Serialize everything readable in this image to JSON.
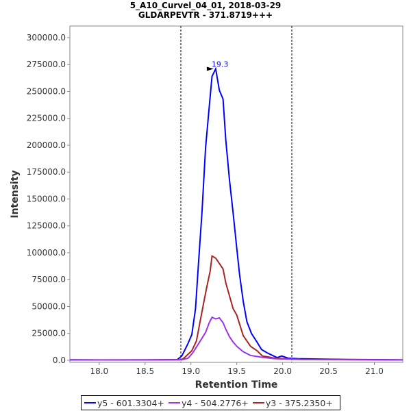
{
  "chart_data": {
    "type": "line",
    "title": "5_A10_Curvel_04_01, 2018-03-29",
    "subtitle": "GLDARPEVTR - 371.8719+++",
    "xlabel": "Retention Time",
    "ylabel": "Intensity",
    "xlim": [
      17.68,
      21.31
    ],
    "ylim": [
      0,
      310800
    ],
    "xticks": [
      "18.0",
      "18.5",
      "19.0",
      "19.5",
      "20.0",
      "20.5",
      "21.0"
    ],
    "xtick_values": [
      18.0,
      18.5,
      19.0,
      19.5,
      20.0,
      20.5,
      21.0
    ],
    "yticks": [
      "0.0",
      "25000.0",
      "50000.0",
      "75000.0",
      "100000.0",
      "125000.0",
      "150000.0",
      "175000.0",
      "200000.0",
      "225000.0",
      "250000.0",
      "275000.0",
      "300000.0"
    ],
    "ytick_values": [
      0,
      25000,
      50000,
      75000,
      100000,
      125000,
      150000,
      175000,
      200000,
      225000,
      250000,
      275000,
      300000
    ],
    "integration_bounds": [
      18.89,
      20.1
    ],
    "peak_annotation": {
      "x": 19.27,
      "y": 271000,
      "label": "19.3"
    },
    "series": [
      {
        "name": "y5 - 601.3304+",
        "color": "#0000ff",
        "x": [
          17.68,
          18.0,
          18.5,
          18.85,
          18.9,
          18.93,
          18.97,
          19.01,
          19.05,
          19.08,
          19.12,
          19.16,
          19.2,
          19.23,
          19.27,
          19.31,
          19.35,
          19.38,
          19.42,
          19.46,
          19.5,
          19.53,
          19.57,
          19.61,
          19.66,
          19.72,
          19.77,
          19.83,
          19.89,
          19.94,
          19.99,
          20.06,
          20.17,
          20.5,
          21.0,
          21.31
        ],
        "y": [
          500,
          300,
          400,
          600,
          4000,
          9000,
          16000,
          24000,
          48000,
          87000,
          137000,
          198000,
          236000,
          264000,
          271000,
          251000,
          243000,
          205000,
          168000,
          137000,
          104000,
          80000,
          55000,
          36000,
          25000,
          17000,
          10000,
          7000,
          4500,
          2500,
          4000,
          2000,
          1500,
          1000,
          600,
          400
        ]
      },
      {
        "name": "y4 - 504.2776+",
        "color": "#9933ee",
        "x": [
          17.68,
          18.5,
          18.9,
          18.97,
          19.02,
          19.08,
          19.16,
          19.2,
          19.23,
          19.27,
          19.31,
          19.35,
          19.38,
          19.42,
          19.46,
          19.5,
          19.57,
          19.65,
          19.76,
          19.91,
          20.2,
          21.31
        ],
        "y": [
          300,
          300,
          400,
          2000,
          7000,
          15000,
          26000,
          35000,
          40000,
          38500,
          39500,
          35000,
          29000,
          22000,
          17000,
          13000,
          8000,
          4500,
          3000,
          1500,
          700,
          300
        ]
      },
      {
        "name": "y3 - 375.2350+",
        "color": "#aa2222",
        "x": [
          17.68,
          18.5,
          18.9,
          18.93,
          19.01,
          19.06,
          19.12,
          19.17,
          19.21,
          19.23,
          19.27,
          19.31,
          19.35,
          19.38,
          19.46,
          19.5,
          19.57,
          19.65,
          19.72,
          19.78,
          19.85,
          19.91,
          20.2,
          21.31
        ],
        "y": [
          400,
          400,
          600,
          2500,
          9000,
          18000,
          45000,
          67000,
          83000,
          97000,
          95000,
          90000,
          85000,
          72000,
          48000,
          42000,
          23000,
          13000,
          9000,
          4000,
          3000,
          2000,
          900,
          400
        ]
      }
    ]
  }
}
